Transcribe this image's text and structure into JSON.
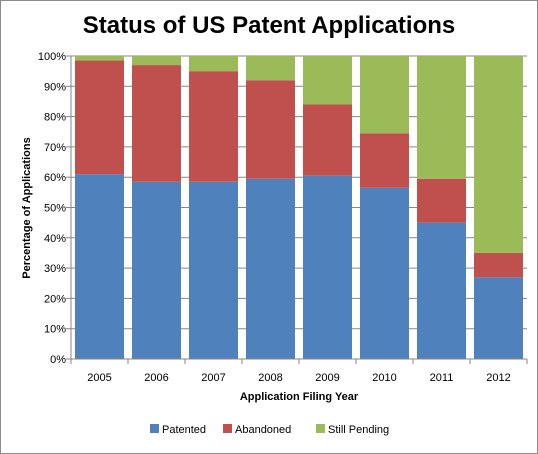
{
  "chart_data": {
    "type": "bar",
    "stacked": true,
    "percent": true,
    "title": "Status of US Patent Applications",
    "xlabel": "Application Filing Year",
    "ylabel": "Percentage of Applications",
    "categories": [
      "2005",
      "2006",
      "2007",
      "2008",
      "2009",
      "2010",
      "2011",
      "2012"
    ],
    "series": [
      {
        "name": "Patented",
        "color": "#4f81bd",
        "values": [
          61,
          58.5,
          58.5,
          59.5,
          60.5,
          56.5,
          45,
          27
        ]
      },
      {
        "name": "Abandoned",
        "color": "#c0504d",
        "values": [
          37.5,
          38.5,
          36.5,
          32.5,
          23.5,
          18,
          14.5,
          8
        ]
      },
      {
        "name": "Still Pending",
        "color": "#9bbb59",
        "values": [
          1.5,
          3,
          5,
          8,
          16,
          25.5,
          40.5,
          65
        ]
      }
    ],
    "ylim": [
      0,
      100
    ],
    "yticks": [
      "0%",
      "10%",
      "20%",
      "30%",
      "40%",
      "50%",
      "60%",
      "70%",
      "80%",
      "90%",
      "100%"
    ],
    "grid": true,
    "legend_position": "bottom"
  }
}
